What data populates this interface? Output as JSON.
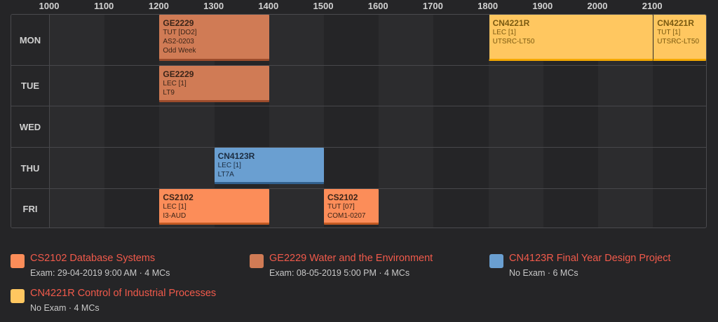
{
  "hours": [
    "1000",
    "1100",
    "1200",
    "1300",
    "1400",
    "1500",
    "1600",
    "1700",
    "1800",
    "1900",
    "2000",
    "2100"
  ],
  "days": [
    {
      "label": "MON",
      "lessons": [
        {
          "code": "GE2229",
          "lines": [
            "TUT [DO2]",
            "AS2-0203",
            "Odd Week"
          ],
          "color": "ge",
          "start": 1200,
          "end": 1400
        },
        {
          "code": "CN4221R",
          "lines": [
            "LEC [1]",
            "UTSRC-LT50"
          ],
          "color": "cn4221",
          "start": 1800,
          "end": 2100
        },
        {
          "code": "CN4221R",
          "lines": [
            "TUT [1]",
            "UTSRC-LT50"
          ],
          "color": "cn4221",
          "start": 2100,
          "end": 2200
        }
      ]
    },
    {
      "label": "TUE",
      "lessons": [
        {
          "code": "GE2229",
          "lines": [
            "LEC [1]",
            "LT9"
          ],
          "color": "ge",
          "start": 1200,
          "end": 1400
        }
      ]
    },
    {
      "label": "WED",
      "lessons": []
    },
    {
      "label": "THU",
      "lessons": [
        {
          "code": "CN4123R",
          "lines": [
            "LEC [1]",
            "LT7A"
          ],
          "color": "cn4123",
          "start": 1300,
          "end": 1500
        }
      ]
    },
    {
      "label": "FRI",
      "lessons": [
        {
          "code": "CS2102",
          "lines": [
            "LEC [1]",
            "I3-AUD"
          ],
          "color": "cs",
          "start": 1200,
          "end": 1400
        },
        {
          "code": "CS2102",
          "lines": [
            "TUT [07]",
            "COM1-0207"
          ],
          "color": "cs",
          "start": 1500,
          "end": 1600
        }
      ]
    }
  ],
  "legend": [
    {
      "title": "CS2102 Database Systems",
      "sub": "Exam: 29-04-2019 9:00 AM · 4 MCs",
      "color": "#fc8d59"
    },
    {
      "title": "GE2229 Water and the Environment",
      "sub": "Exam: 08-05-2019 5:00 PM · 4 MCs",
      "color": "#d07b55"
    },
    {
      "title": "CN4123R Final Year Design Project",
      "sub": "No Exam · 6 MCs",
      "color": "#6a9fd1"
    },
    {
      "title": "CN4221R Control of Industrial Processes",
      "sub": "No Exam · 4 MCs",
      "color": "#ffc760"
    }
  ]
}
